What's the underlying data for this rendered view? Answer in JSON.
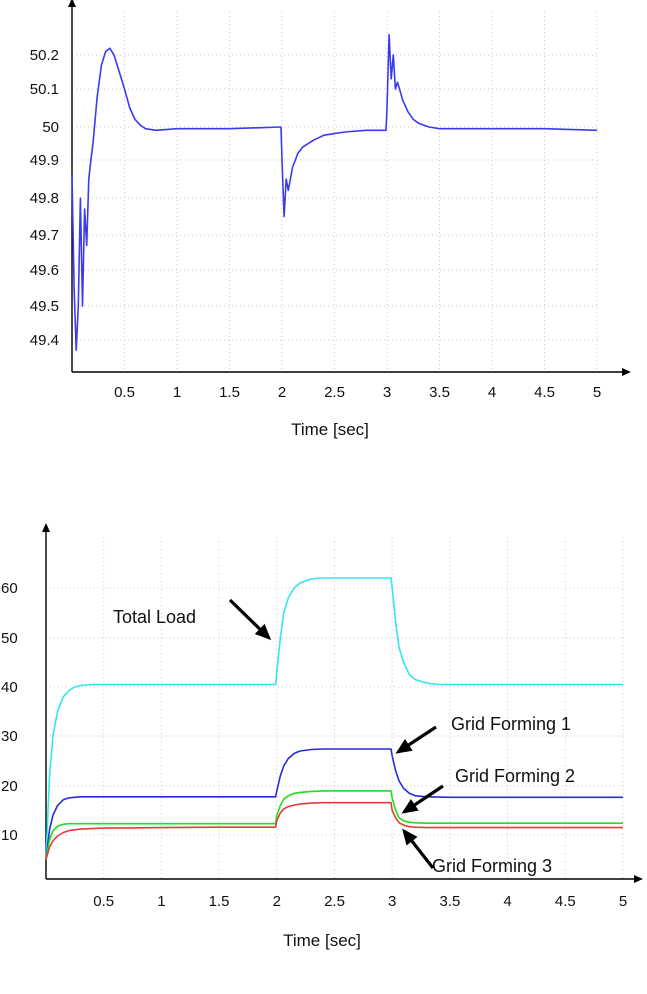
{
  "chart_data": [
    {
      "type": "line",
      "title": "",
      "xlabel": "Time [sec]",
      "ylabel": "",
      "xlim": [
        0,
        5
      ],
      "ylim": [
        49.3,
        50.32
      ],
      "grid": true,
      "x_ticks": [
        "0.5",
        "1",
        "1.5",
        "2",
        "2.5",
        "3",
        "3.5",
        "4",
        "4.5",
        "5"
      ],
      "y_ticks": [
        "50.2",
        "50.1",
        "50",
        "49.9",
        "49.8",
        "49.7",
        "49.6",
        "49.5",
        "49.4"
      ],
      "series": [
        {
          "color": "#3a3af0",
          "x": [
            0,
            0.02,
            0.04,
            0.06,
            0.08,
            0.1,
            0.12,
            0.14,
            0.16,
            0.18,
            0.2,
            0.24,
            0.28,
            0.32,
            0.36,
            0.4,
            0.45,
            0.5,
            0.55,
            0.6,
            0.65,
            0.7,
            0.8,
            1.0,
            1.5,
            1.99,
            2.0,
            2.02,
            2.04,
            2.06,
            2.1,
            2.15,
            2.2,
            2.3,
            2.4,
            2.5,
            2.6,
            2.8,
            2.99,
            3.0,
            3.02,
            3.04,
            3.06,
            3.08,
            3.1,
            3.15,
            3.2,
            3.25,
            3.3,
            3.4,
            3.5,
            4.0,
            4.5,
            5.0
          ],
          "y": [
            49.86,
            49.55,
            49.37,
            49.5,
            49.8,
            49.5,
            49.77,
            49.67,
            49.85,
            49.9,
            49.95,
            50.08,
            50.17,
            50.21,
            50.22,
            50.2,
            50.15,
            50.1,
            50.05,
            50.02,
            50.005,
            49.995,
            49.99,
            49.995,
            49.995,
            50.0,
            49.9,
            49.75,
            49.85,
            49.82,
            49.88,
            49.92,
            49.94,
            49.96,
            49.975,
            49.98,
            49.985,
            49.99,
            49.99,
            50.05,
            50.26,
            50.13,
            50.2,
            50.1,
            50.12,
            50.07,
            50.04,
            50.02,
            50.01,
            50.0,
            49.995,
            49.995,
            49.995,
            49.99
          ]
        }
      ]
    },
    {
      "type": "line",
      "title": "",
      "xlabel": "Time [sec]",
      "ylabel": "",
      "xlim": [
        0,
        5
      ],
      "ylim": [
        4,
        69
      ],
      "grid": true,
      "x_ticks": [
        "0.5",
        "1",
        "1.5",
        "2",
        "2.5",
        "3",
        "3.5",
        "4",
        "4.5",
        "5"
      ],
      "y_ticks": [
        "60",
        "50",
        "40",
        "30",
        "20",
        "10"
      ],
      "series": [
        {
          "name": "Total Load",
          "color": "#33e6ee",
          "x": [
            0,
            0.03,
            0.06,
            0.1,
            0.15,
            0.2,
            0.25,
            0.3,
            0.4,
            0.5,
            1.0,
            1.5,
            1.99,
            2.0,
            2.03,
            2.06,
            2.1,
            2.15,
            2.2,
            2.3,
            2.4,
            2.5,
            2.99,
            3.0,
            3.03,
            3.06,
            3.1,
            3.15,
            3.2,
            3.3,
            3.4,
            3.5,
            4.0,
            4.5,
            5.0
          ],
          "y": [
            5,
            22,
            30,
            35,
            38,
            39.3,
            40,
            40.3,
            40.5,
            40.5,
            40.5,
            40.5,
            40.5,
            43,
            50,
            55,
            58,
            60,
            61,
            61.8,
            62,
            62,
            62,
            60,
            53,
            48,
            45,
            42.5,
            41.5,
            40.8,
            40.5,
            40.5,
            40.5,
            40.5,
            40.5
          ]
        },
        {
          "name": "Grid Forming 1",
          "color": "#2a2ad6",
          "x": [
            0,
            0.03,
            0.06,
            0.1,
            0.15,
            0.2,
            0.3,
            0.5,
            1.0,
            1.5,
            1.99,
            2.0,
            2.03,
            2.06,
            2.1,
            2.15,
            2.2,
            2.3,
            2.4,
            2.5,
            2.99,
            3.0,
            3.03,
            3.06,
            3.1,
            3.15,
            3.2,
            3.3,
            3.5,
            4.0,
            4.5,
            5.0
          ],
          "y": [
            5,
            11,
            14,
            16,
            17.2,
            17.6,
            17.8,
            17.8,
            17.8,
            17.8,
            17.8,
            19,
            22,
            24,
            25.5,
            26.5,
            27,
            27.3,
            27.4,
            27.4,
            27.4,
            26,
            23,
            21,
            19.5,
            18.5,
            18,
            17.8,
            17.7,
            17.7,
            17.7,
            17.7
          ]
        },
        {
          "name": "Grid Forming 2",
          "color": "#1ee01e",
          "x": [
            0,
            0.03,
            0.06,
            0.1,
            0.15,
            0.2,
            0.3,
            0.5,
            1.0,
            1.5,
            1.99,
            2.0,
            2.03,
            2.06,
            2.1,
            2.15,
            2.2,
            2.3,
            2.4,
            2.5,
            2.99,
            3.0,
            3.03,
            3.06,
            3.1,
            3.15,
            3.2,
            3.3,
            3.5,
            4.0,
            4.5,
            5.0
          ],
          "y": [
            5,
            9,
            10.8,
            11.8,
            12.2,
            12.3,
            12.3,
            12.3,
            12.3,
            12.3,
            12.3,
            14,
            16,
            17.3,
            18,
            18.5,
            18.7,
            18.9,
            19,
            19,
            19,
            17.5,
            15,
            13.5,
            12.9,
            12.6,
            12.5,
            12.4,
            12.4,
            12.4,
            12.4,
            12.4
          ]
        },
        {
          "name": "Grid Forming 3",
          "color": "#e83a3a",
          "x": [
            0,
            0.03,
            0.06,
            0.1,
            0.15,
            0.2,
            0.3,
            0.4,
            0.5,
            1.0,
            1.5,
            1.99,
            2.0,
            2.03,
            2.06,
            2.1,
            2.15,
            2.2,
            2.3,
            2.4,
            2.5,
            2.99,
            3.0,
            3.03,
            3.06,
            3.1,
            3.15,
            3.2,
            3.3,
            3.5,
            4.0,
            4.5,
            5.0
          ],
          "y": [
            5,
            7.5,
            8.8,
            9.8,
            10.5,
            10.9,
            11.2,
            11.3,
            11.4,
            11.5,
            11.6,
            11.6,
            13,
            14.5,
            15.3,
            15.8,
            16.1,
            16.3,
            16.5,
            16.6,
            16.6,
            16.6,
            15,
            13.5,
            12.5,
            12,
            11.7,
            11.6,
            11.5,
            11.5,
            11.5,
            11.5,
            11.5
          ]
        }
      ]
    }
  ]
}
